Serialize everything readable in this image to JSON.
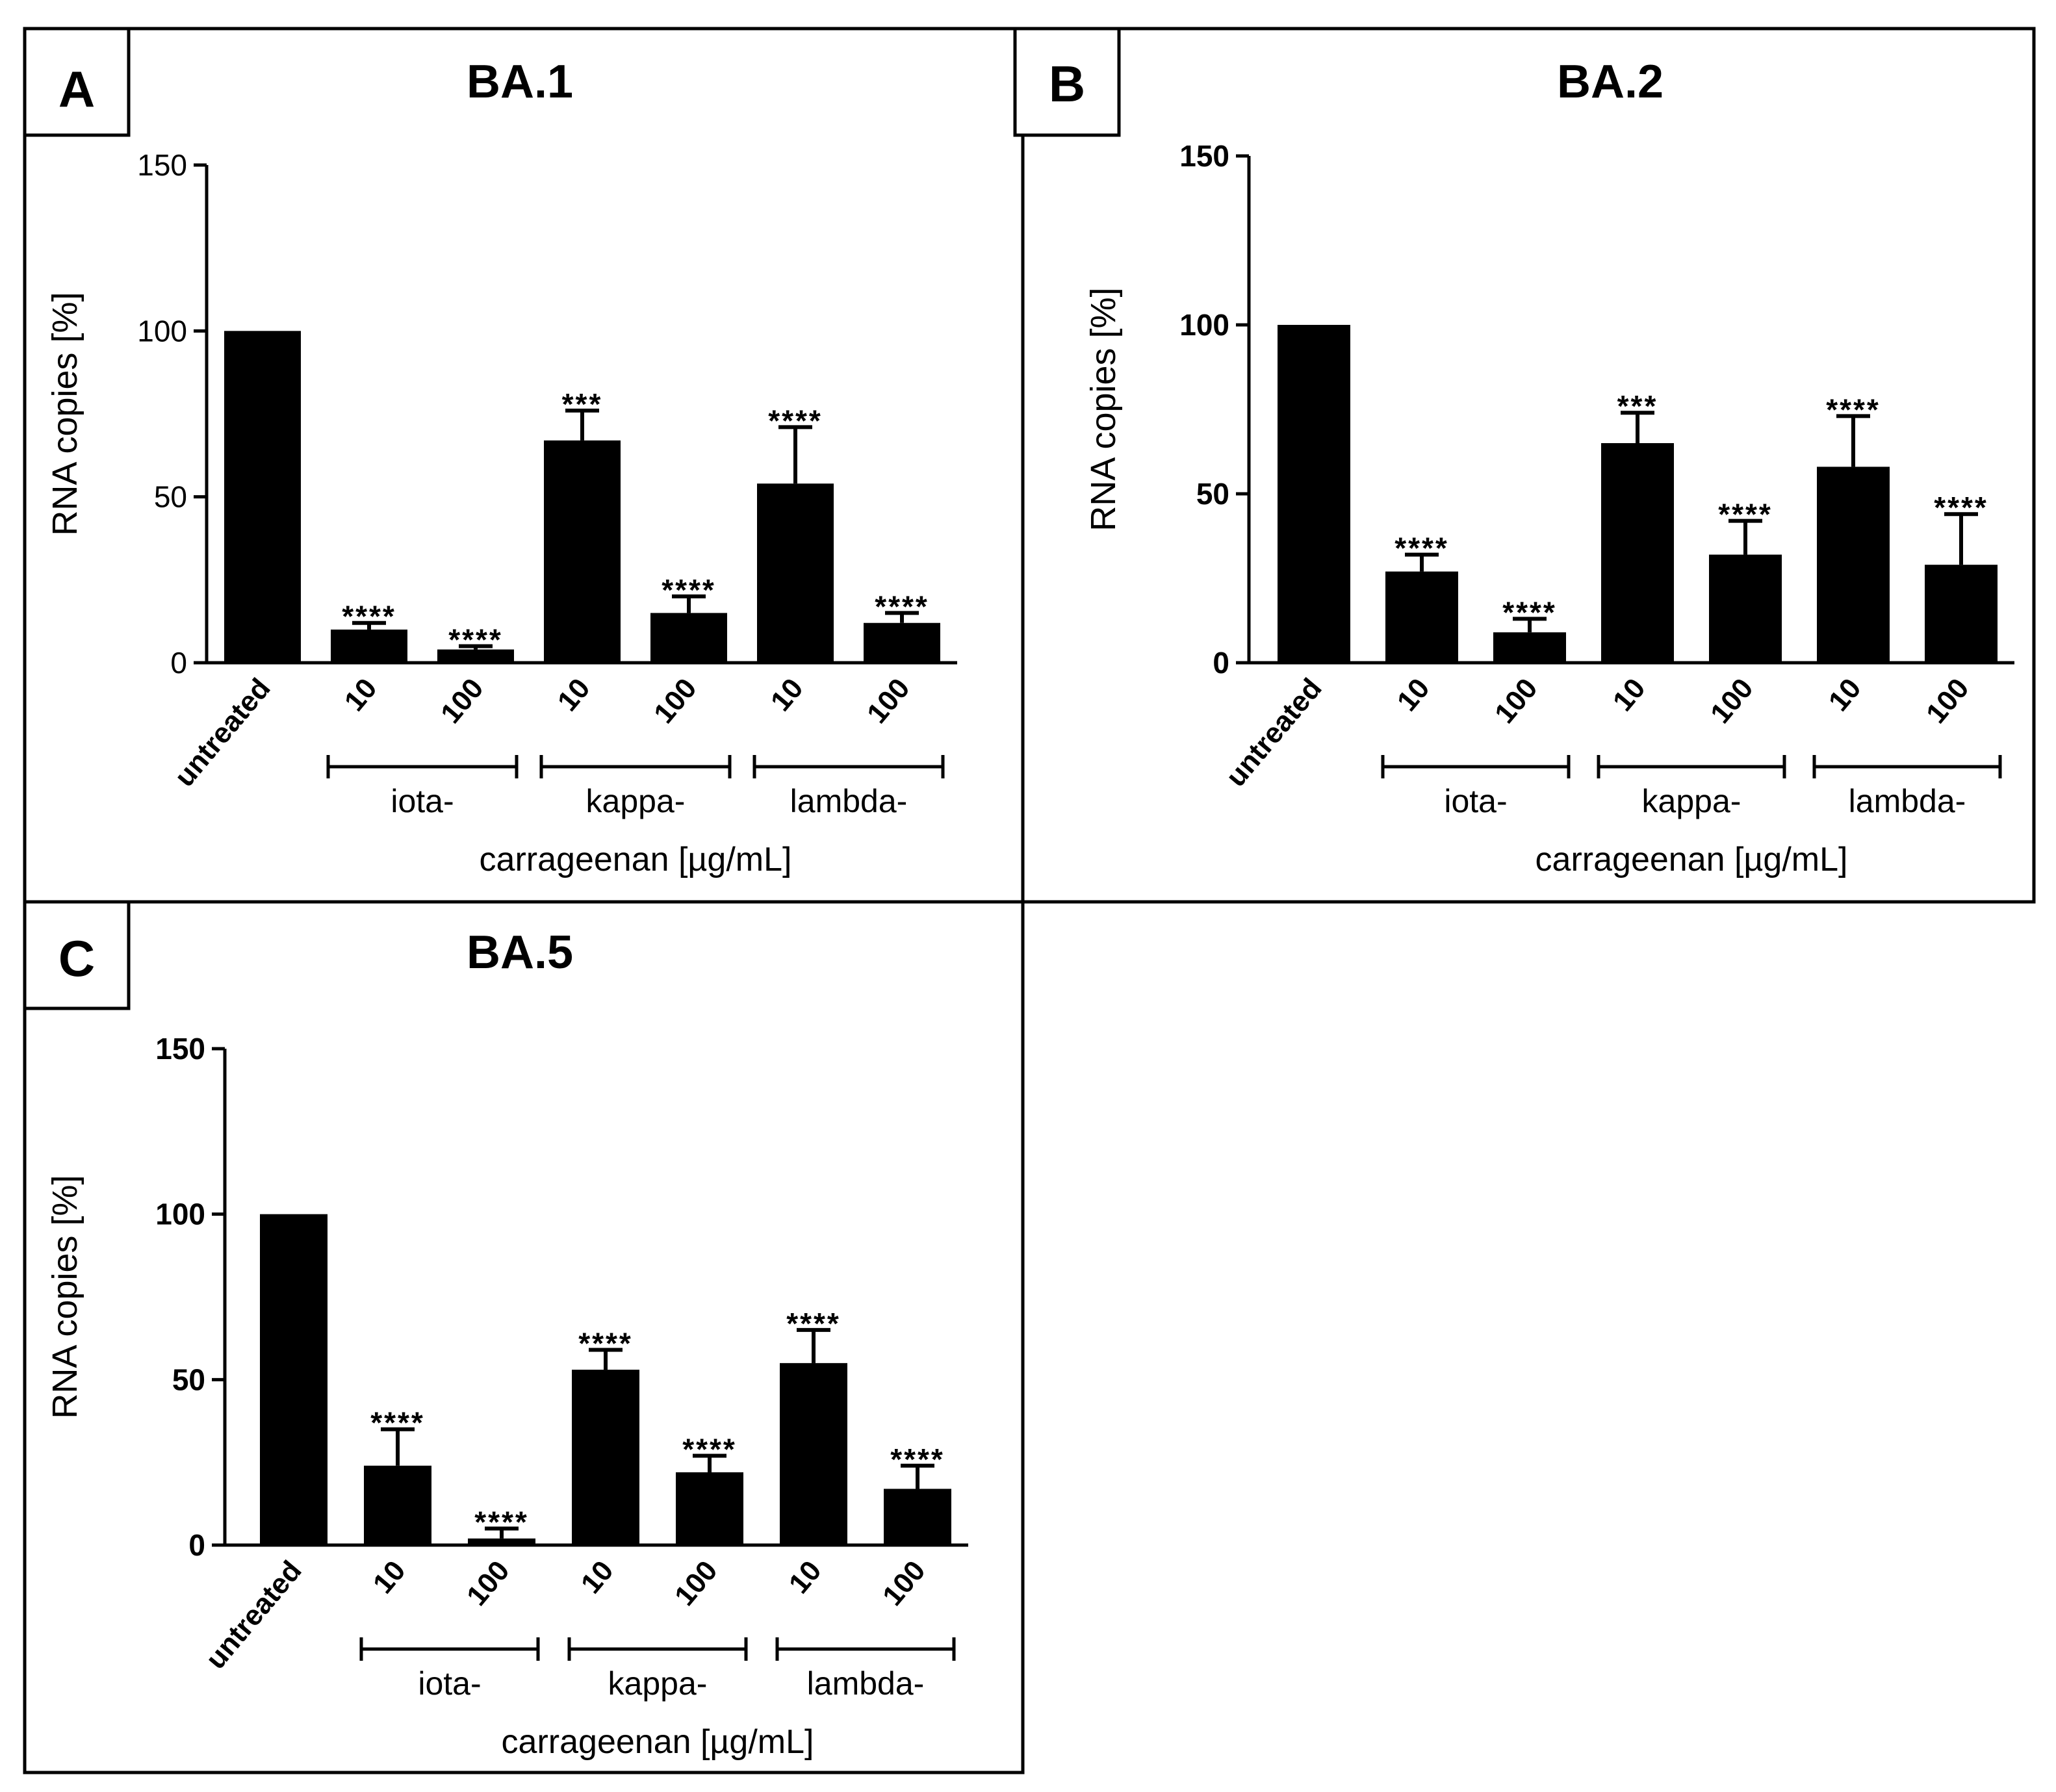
{
  "chart_data": [
    {
      "type": "bar",
      "panel": "A",
      "title": "BA.1",
      "ylabel": "RNA copies [%]",
      "xlabel": "carrageenan [µg/mL]",
      "ylim": [
        0,
        150
      ],
      "yticks": [
        "0",
        "50",
        "100",
        "150"
      ],
      "categories": [
        "untreated",
        "10",
        "100",
        "10",
        "100",
        "10",
        "100"
      ],
      "groups": [
        {
          "label": "iota-",
          "from": 1,
          "to": 2
        },
        {
          "label": "kappa-",
          "from": 3,
          "to": 4
        },
        {
          "label": "lambda-",
          "from": 5,
          "to": 6
        }
      ],
      "values": [
        100,
        10,
        4,
        67,
        15,
        54,
        12
      ],
      "errors": [
        0,
        2,
        1,
        9,
        5,
        17,
        3
      ],
      "significance": [
        "",
        "****",
        "****",
        "***",
        "****",
        "****",
        "****"
      ]
    },
    {
      "type": "bar",
      "panel": "B",
      "title": "BA.2",
      "ylabel": "RNA copies [%]",
      "xlabel": "carrageenan [µg/mL]",
      "ylim": [
        0,
        150
      ],
      "yticks": [
        "0",
        "50",
        "100",
        "150"
      ],
      "categories": [
        "untreated",
        "10",
        "100",
        "10",
        "100",
        "10",
        "100"
      ],
      "groups": [
        {
          "label": "iota-",
          "from": 1,
          "to": 2
        },
        {
          "label": "kappa-",
          "from": 3,
          "to": 4
        },
        {
          "label": "lambda-",
          "from": 5,
          "to": 6
        }
      ],
      "values": [
        100,
        27,
        9,
        65,
        32,
        58,
        29
      ],
      "errors": [
        0,
        5,
        4,
        9,
        10,
        15,
        15
      ],
      "significance": [
        "",
        "****",
        "****",
        "***",
        "****",
        "****",
        "****"
      ]
    },
    {
      "type": "bar",
      "panel": "C",
      "title": "BA.5",
      "ylabel": "RNA copies [%]",
      "xlabel": "carrageenan [µg/mL]",
      "ylim": [
        0,
        150
      ],
      "yticks": [
        "0",
        "50",
        "100",
        "150"
      ],
      "categories": [
        "untreated",
        "10",
        "100",
        "10",
        "100",
        "10",
        "100"
      ],
      "groups": [
        {
          "label": "iota-",
          "from": 1,
          "to": 2
        },
        {
          "label": "kappa-",
          "from": 3,
          "to": 4
        },
        {
          "label": "lambda-",
          "from": 5,
          "to": 6
        }
      ],
      "values": [
        100,
        24,
        2,
        53,
        22,
        55,
        17
      ],
      "errors": [
        0,
        11,
        3,
        6,
        5,
        10,
        7
      ],
      "significance": [
        "",
        "****",
        "****",
        "****",
        "****",
        "****",
        "****"
      ]
    }
  ]
}
